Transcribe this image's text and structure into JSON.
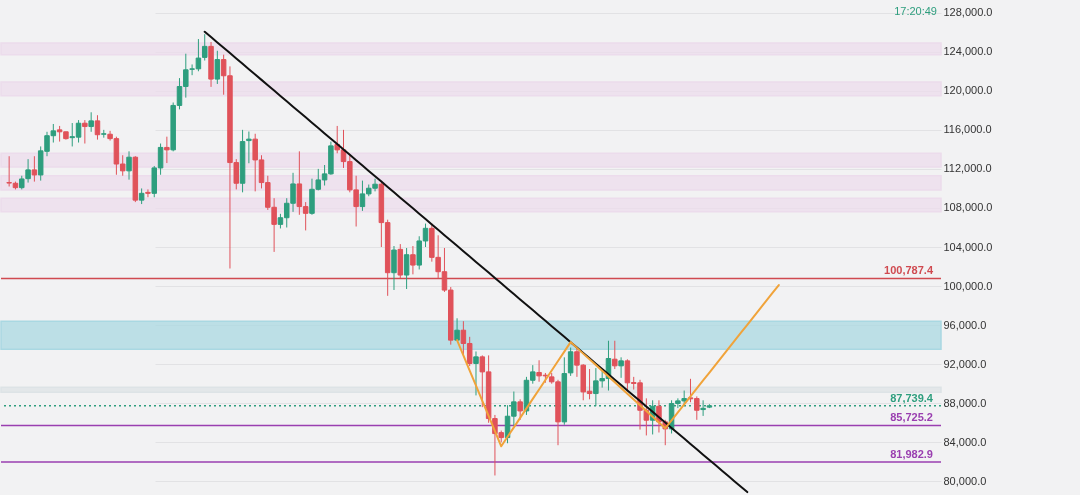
{
  "chart_data": {
    "type": "candlestick",
    "categories": [
      null,
      null,
      null,
      null,
      null,
      null,
      null,
      null,
      null,
      null,
      null,
      null,
      null,
      null,
      null,
      null,
      null,
      null,
      null,
      null,
      null,
      null,
      null,
      null,
      null,
      null,
      null,
      null,
      null,
      null,
      null,
      null,
      null,
      null,
      null,
      null,
      null,
      null,
      null,
      null,
      null,
      null,
      null,
      null,
      null,
      null,
      null,
      null,
      null,
      null,
      null,
      null,
      null,
      null,
      null,
      null,
      null,
      null,
      null,
      null,
      null,
      null,
      null,
      null,
      null,
      null,
      null,
      null,
      null,
      null,
      null,
      null,
      null,
      null,
      null,
      null,
      null,
      null,
      null,
      null,
      null,
      null,
      null,
      null,
      null,
      null,
      null,
      null,
      null,
      null,
      null,
      null,
      null,
      null,
      null,
      null,
      null,
      null,
      null,
      null,
      null,
      null,
      null,
      null,
      null,
      null,
      null,
      null,
      null,
      null,
      null,
      null,
      null,
      null,
      null,
      null,
      null,
      null,
      null,
      null,
      null,
      null,
      null
    ],
    "ohlc": [
      [
        110600,
        113300,
        110200,
        110550
      ],
      [
        110530,
        110700,
        109900,
        110080
      ],
      [
        110080,
        111300,
        109900,
        110970
      ],
      [
        111000,
        113000,
        110600,
        111900
      ],
      [
        111900,
        113300,
        110700,
        111380
      ],
      [
        111380,
        114300,
        110800,
        113850
      ],
      [
        113800,
        115800,
        113300,
        115400
      ],
      [
        115400,
        116600,
        114700,
        115900
      ],
      [
        116000,
        116400,
        114800,
        115800
      ],
      [
        115800,
        115800,
        115000,
        115100
      ],
      [
        115200,
        116700,
        114300,
        115300
      ],
      [
        115250,
        117000,
        114700,
        116680
      ],
      [
        116680,
        117000,
        114600,
        116340
      ],
      [
        116340,
        117800,
        115800,
        116920
      ],
      [
        116920,
        117500,
        115000,
        115500
      ],
      [
        115550,
        116000,
        115200,
        115600
      ],
      [
        115550,
        115900,
        114900,
        115100
      ],
      [
        115100,
        115300,
        111400,
        112500
      ],
      [
        112500,
        113400,
        111300,
        111800
      ],
      [
        111800,
        113800,
        110900,
        113200
      ],
      [
        113200,
        113300,
        108600,
        108800
      ],
      [
        108800,
        110000,
        108400,
        109500
      ],
      [
        109600,
        109900,
        109100,
        109500
      ],
      [
        109500,
        112300,
        109100,
        112100
      ],
      [
        112100,
        114600,
        111400,
        114200
      ],
      [
        114200,
        115300,
        112600,
        113950
      ],
      [
        113950,
        118800,
        113800,
        118500
      ],
      [
        118500,
        121300,
        118100,
        120440
      ],
      [
        120440,
        123800,
        119300,
        122150
      ],
      [
        122200,
        122700,
        121600,
        122250
      ],
      [
        122250,
        125300,
        122000,
        123350
      ],
      [
        123420,
        125800,
        123100,
        124550
      ],
      [
        124550,
        125000,
        120400,
        121200
      ],
      [
        121200,
        124100,
        120700,
        123200
      ],
      [
        123200,
        123700,
        119600,
        121540
      ],
      [
        121540,
        122500,
        101800,
        112650
      ],
      [
        112650,
        113000,
        109900,
        110530
      ],
      [
        110530,
        116000,
        109600,
        114800
      ],
      [
        114900,
        115830,
        112580,
        115050
      ],
      [
        115050,
        115600,
        109700,
        112920
      ],
      [
        112920,
        113400,
        110000,
        110600
      ],
      [
        110600,
        111300,
        107800,
        108070
      ],
      [
        108070,
        109000,
        103500,
        106320
      ],
      [
        106320,
        107400,
        105900,
        107000
      ],
      [
        107000,
        109000,
        106000,
        108480
      ],
      [
        108480,
        111600,
        107600,
        110460
      ],
      [
        110460,
        113800,
        107300,
        108140
      ],
      [
        108140,
        108600,
        105700,
        107450
      ],
      [
        107450,
        111000,
        107300,
        109910
      ],
      [
        109910,
        112000,
        109800,
        110870
      ],
      [
        110870,
        112400,
        110300,
        111490
      ],
      [
        111490,
        114800,
        111400,
        114360
      ],
      [
        114500,
        116400,
        113600,
        113950
      ],
      [
        113950,
        116000,
        112100,
        112750
      ],
      [
        112750,
        113400,
        109600,
        109850
      ],
      [
        109850,
        111300,
        106100,
        108140
      ],
      [
        108140,
        110800,
        107700,
        109440
      ],
      [
        109440,
        110400,
        109200,
        110020
      ],
      [
        110020,
        111000,
        109700,
        110430
      ],
      [
        110430,
        110700,
        104000,
        106500
      ],
      [
        106500,
        106800,
        99000,
        101370
      ],
      [
        101370,
        104100,
        99600,
        103690
      ],
      [
        103760,
        104300,
        100800,
        101130
      ],
      [
        101130,
        103900,
        99700,
        103210
      ],
      [
        103210,
        104100,
        101200,
        102150
      ],
      [
        102150,
        105100,
        101700,
        104620
      ],
      [
        104620,
        106400,
        104000,
        105915
      ],
      [
        105915,
        106400,
        102500,
        102940
      ],
      [
        102940,
        105200,
        100800,
        101470
      ],
      [
        101470,
        103900,
        99400,
        99590
      ],
      [
        99590,
        99900,
        94000,
        94460
      ],
      [
        94460,
        96700,
        94400,
        95480
      ],
      [
        95480,
        96400,
        93000,
        94120
      ],
      [
        94120,
        94800,
        91800,
        92070
      ],
      [
        92070,
        93300,
        88800,
        92750
      ],
      [
        92750,
        92900,
        87600,
        91210
      ],
      [
        91210,
        92900,
        86000,
        86430
      ],
      [
        86430,
        86800,
        80600,
        84890
      ],
      [
        84990,
        85200,
        84000,
        84480
      ],
      [
        84480,
        87800,
        83900,
        86670
      ],
      [
        86670,
        89200,
        85700,
        88140
      ],
      [
        88140,
        88400,
        86300,
        87210
      ],
      [
        87210,
        90700,
        86800,
        90350
      ],
      [
        90350,
        91900,
        90000,
        91210
      ],
      [
        91150,
        92400,
        90200,
        90800
      ],
      [
        90870,
        91100,
        90100,
        90800
      ],
      [
        90700,
        91100,
        90000,
        90190
      ],
      [
        90190,
        90400,
        83700,
        86090
      ],
      [
        86090,
        92700,
        85800,
        91040
      ],
      [
        91110,
        93700,
        90800,
        93270
      ],
      [
        93270,
        93700,
        90700,
        91900
      ],
      [
        91900,
        92000,
        88300,
        89160
      ],
      [
        89230,
        91500,
        88400,
        88990
      ],
      [
        88990,
        91600,
        87700,
        90290
      ],
      [
        90290,
        91300,
        89600,
        90530
      ],
      [
        90530,
        94400,
        89300,
        92580
      ],
      [
        92510,
        94400,
        91500,
        91830
      ],
      [
        91830,
        92700,
        90600,
        92340
      ],
      [
        92340,
        92500,
        89200,
        90090
      ],
      [
        90120,
        90700,
        89400,
        90020
      ],
      [
        90090,
        90400,
        85300,
        87280
      ],
      [
        87280,
        88500,
        84700,
        86260
      ],
      [
        86260,
        88300,
        84800,
        87690
      ],
      [
        87690,
        88300,
        85000,
        86090
      ],
      [
        86090,
        86300,
        83700,
        85370
      ],
      [
        85370,
        88300,
        84900,
        87970
      ],
      [
        87970,
        88500,
        87500,
        88240
      ],
      [
        88240,
        89300,
        87800,
        88480
      ],
      [
        88550,
        90500,
        88100,
        88450
      ],
      [
        88480,
        88700,
        86300,
        87280
      ],
      [
        87350,
        88300,
        86700,
        87480
      ],
      [
        87600,
        87900,
        87500,
        87739.4
      ],
      null,
      null,
      null,
      null,
      null,
      null,
      null,
      null,
      null,
      null,
      null
    ],
    "colors": [
      "#e0525a",
      "#e0525a",
      "#2e9e7e",
      "#2e9e7e",
      "#e0525a",
      "#2e9e7e",
      "#2e9e7e",
      "#2e9e7e",
      "#e0525a",
      "#e0525a",
      "#2e9e7e",
      "#2e9e7e",
      "#e0525a",
      "#2e9e7e",
      "#e0525a",
      "#2e9e7e",
      "#e0525a",
      "#e0525a",
      "#e0525a",
      "#2e9e7e",
      "#e0525a",
      "#2e9e7e",
      "#e0525a",
      "#2e9e7e",
      "#2e9e7e",
      "#e0525a",
      "#2e9e7e",
      "#2e9e7e",
      "#2e9e7e",
      "#2e9e7e",
      "#2e9e7e",
      "#2e9e7e",
      "#e0525a",
      "#2e9e7e",
      "#e0525a",
      "#e0525a",
      "#e0525a",
      "#2e9e7e",
      "#2e9e7e",
      "#e0525a",
      "#e0525a",
      "#e0525a",
      "#e0525a",
      "#2e9e7e",
      "#2e9e7e",
      "#2e9e7e",
      "#e0525a",
      "#e0525a",
      "#2e9e7e",
      "#2e9e7e",
      "#2e9e7e",
      "#2e9e7e",
      "#e0525a",
      "#e0525a",
      "#e0525a",
      "#e0525a",
      "#2e9e7e",
      "#2e9e7e",
      "#2e9e7e",
      "#e0525a",
      "#e0525a",
      "#2e9e7e",
      "#e0525a",
      "#2e9e7e",
      "#e0525a",
      "#2e9e7e",
      "#2e9e7e",
      "#e0525a",
      "#e0525a",
      "#e0525a",
      "#e0525a",
      "#2e9e7e",
      "#e0525a",
      "#e0525a",
      "#2e9e7e",
      "#e0525a",
      "#e0525a",
      "#e0525a",
      "#e0525a",
      "#2e9e7e",
      "#2e9e7e",
      "#e0525a",
      "#2e9e7e",
      "#2e9e7e",
      "#e0525a",
      "#e0525a",
      "#e0525a",
      "#e0525a",
      "#2e9e7e",
      "#2e9e7e",
      "#e0525a",
      "#e0525a",
      "#e0525a",
      "#2e9e7e",
      "#2e9e7e",
      "#2e9e7e",
      "#e0525a",
      "#2e9e7e",
      "#e0525a",
      "#e0525a",
      "#e0525a",
      "#e0525a",
      "#2e9e7e",
      "#e0525a",
      "#e0525a",
      "#2e9e7e",
      "#2e9e7e",
      "#2e9e7e",
      "#e0525a",
      "#e0525a",
      "#2e9e7e",
      "#2e9e7e",
      null,
      null,
      null,
      null,
      null,
      null,
      null,
      null,
      null,
      null,
      null
    ],
    "series": [
      {
        "type": "line",
        "color": "#111111",
        "values": [
          null,
          null,
          null,
          null,
          null,
          null,
          null,
          null,
          null,
          null,
          null,
          null,
          null,
          null,
          null,
          null,
          null,
          null,
          null,
          null,
          null,
          null,
          null,
          null,
          null,
          null,
          null,
          null,
          null,
          null,
          null,
          126050,
          125500,
          124950,
          124410,
          123860,
          123310,
          122760,
          122210,
          121660,
          121120,
          120570,
          120020,
          119470,
          118920,
          118370,
          117830,
          117280,
          116730,
          116180,
          115630,
          115080,
          114540,
          113990,
          113440,
          112890,
          112340,
          111790,
          111250,
          110700,
          110150,
          109600,
          109050,
          108500,
          107960,
          107410,
          106860,
          106310,
          105760,
          105210,
          104670,
          104120,
          103570,
          103020,
          102470,
          101920,
          101380,
          100830,
          100280,
          99730,
          99180,
          98630,
          98090,
          97540,
          96990,
          96440,
          95890,
          95340,
          94800,
          94250,
          93700,
          93150,
          92600,
          92050,
          91510,
          90960,
          90410,
          89860,
          89310,
          88760,
          88220,
          87670,
          87120,
          86570,
          86020,
          85470,
          84930,
          84380,
          83830,
          83280,
          82730,
          82180,
          81640,
          81090,
          80540,
          79990,
          79440,
          78900,
          null,
          null,
          null,
          null,
          null
        ]
      },
      {
        "type": "line",
        "color": "#f0a33a",
        "values": [
          null,
          null,
          null,
          null,
          null,
          null,
          null,
          null,
          null,
          null,
          null,
          null,
          null,
          null,
          null,
          null,
          null,
          null,
          null,
          null,
          null,
          null,
          null,
          null,
          null,
          null,
          null,
          null,
          null,
          null,
          null,
          null,
          null,
          null,
          null,
          null,
          null,
          null,
          null,
          null,
          null,
          null,
          null,
          null,
          null,
          null,
          null,
          null,
          null,
          null,
          null,
          null,
          null,
          null,
          null,
          null,
          null,
          null,
          null,
          null,
          null,
          null,
          null,
          null,
          null,
          null,
          null,
          null,
          null,
          null,
          null,
          94460,
          92910,
          91350,
          89800,
          88250,
          86700,
          85140,
          83590,
          84560,
          85530,
          86500,
          87470,
          88440,
          89410,
          90380,
          91350,
          92320,
          93290,
          94260,
          93670,
          93080,
          92500,
          91910,
          91320,
          90740,
          90150,
          89560,
          88970,
          88380,
          87800,
          87210,
          86620,
          86030,
          85440,
          86250,
          87070,
          87880,
          88700,
          89510,
          90330,
          91140,
          91960,
          92770,
          93590,
          94400,
          95220,
          96030,
          96850,
          97660,
          98480,
          99290,
          100100
        ]
      }
    ],
    "ylim": [
      78600,
      129300
    ],
    "yticks": [
      {
        "value": 80000,
        "label": "80,000.0"
      },
      {
        "value": 84000,
        "label": "84,000.0"
      },
      {
        "value": 88000,
        "label": "88,000.0"
      },
      {
        "value": 92000,
        "label": "92,000.0"
      },
      {
        "value": 96000,
        "label": "96,000.0"
      },
      {
        "value": 100000,
        "label": "100,000.0"
      },
      {
        "value": 104000,
        "label": "104,000.0"
      },
      {
        "value": 108000,
        "label": "108,000.0"
      },
      {
        "value": 112000,
        "label": "112,000.0"
      },
      {
        "value": 116000,
        "label": "116,000.0"
      },
      {
        "value": 120000,
        "label": "120,000.0"
      },
      {
        "value": 124000,
        "label": "124,000.0"
      },
      {
        "value": 128000,
        "label": "128,000.0"
      }
    ],
    "tick_labels": "y",
    "grid": "y",
    "bands": [
      {
        "axis": "y",
        "from": 123700,
        "to": 124900,
        "color": "#ecdcec"
      },
      {
        "axis": "y",
        "from": 119500,
        "to": 120900,
        "color": "#ecdcec"
      },
      {
        "axis": "y",
        "from": 112200,
        "to": 113600,
        "color": "#ecdcec"
      },
      {
        "axis": "y",
        "from": 109850,
        "to": 111300,
        "color": "#ecdcec"
      },
      {
        "axis": "y",
        "from": 107600,
        "to": 109000,
        "color": "#ecdcec"
      },
      {
        "axis": "y",
        "from": 93540,
        "to": 96400,
        "color": "#a9d8e2"
      },
      {
        "axis": "y",
        "from": 89130,
        "to": 89640,
        "color": "#dde3e6"
      }
    ],
    "ref_lines": [
      {
        "axis": "y",
        "value": 100787.4,
        "label": "100,787.4",
        "color": "#d04a50",
        "line_style": "solid"
      },
      {
        "axis": "y",
        "value": 87739.4,
        "label": "87,739.4",
        "color": "#2e9e7e",
        "line_style": "dotted"
      },
      {
        "axis": "y",
        "value": 85725.2,
        "label": "85,725.2",
        "color": "#9a3fb0",
        "line_style": "solid"
      },
      {
        "axis": "y",
        "value": 81982.9,
        "label": "81,982.9",
        "color": "#9a3fb0",
        "line_style": "solid"
      }
    ],
    "annotations": [
      "17:20:49"
    ]
  }
}
